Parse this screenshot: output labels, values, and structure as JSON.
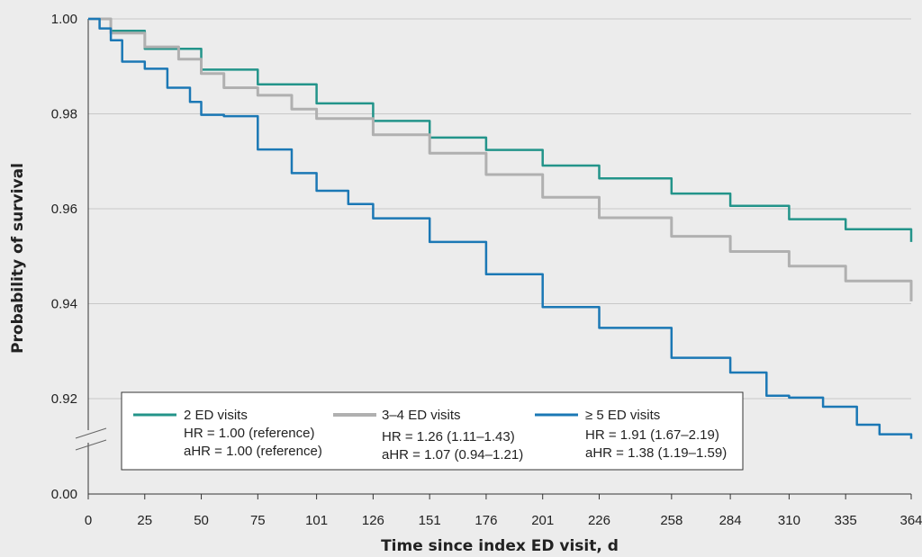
{
  "chart_data": {
    "type": "line",
    "title": "",
    "xlabel": "Time since index ED visit, d",
    "ylabel": "Probability of survival",
    "x_ticks": [
      0,
      25,
      50,
      75,
      101,
      126,
      151,
      176,
      201,
      226,
      258,
      284,
      310,
      335,
      364
    ],
    "xlim": [
      0,
      364
    ],
    "y_ticks": [
      "0.00",
      "0.92",
      "0.94",
      "0.96",
      "0.98",
      "1.00"
    ],
    "ylim": [
      0.91,
      1.0
    ],
    "y_axis_break": "between 0.00 and 0.92",
    "grid": "horizontal",
    "legend_position": "bottom-left inside plot",
    "series": [
      {
        "name": "2 ED visits",
        "color": "#23948a",
        "hr": "HR = 1.00 (reference)",
        "ahr": "aHR = 1.00 (reference)",
        "points": [
          [
            0,
            1.0
          ],
          [
            10,
            0.9975
          ],
          [
            25,
            0.9937
          ],
          [
            50,
            0.9893
          ],
          [
            75,
            0.9862
          ],
          [
            101,
            0.9822
          ],
          [
            126,
            0.9785
          ],
          [
            151,
            0.975
          ],
          [
            176,
            0.9724
          ],
          [
            201,
            0.9691
          ],
          [
            226,
            0.9664
          ],
          [
            258,
            0.9632
          ],
          [
            284,
            0.9606
          ],
          [
            310,
            0.9578
          ],
          [
            335,
            0.9557
          ],
          [
            364,
            0.953
          ]
        ]
      },
      {
        "name": "3–4 ED visits",
        "color": "#b0b0b0",
        "hr": "HR = 1.26 (1.11–1.43)",
        "ahr": "aHR = 1.07 (0.94–1.21)",
        "points": [
          [
            0,
            1.0
          ],
          [
            10,
            0.997
          ],
          [
            25,
            0.9941
          ],
          [
            40,
            0.9915
          ],
          [
            50,
            0.9885
          ],
          [
            60,
            0.9855
          ],
          [
            75,
            0.9839
          ],
          [
            90,
            0.981
          ],
          [
            101,
            0.979
          ],
          [
            126,
            0.9756
          ],
          [
            151,
            0.9717
          ],
          [
            176,
            0.9672
          ],
          [
            201,
            0.9624
          ],
          [
            226,
            0.9581
          ],
          [
            258,
            0.9542
          ],
          [
            284,
            0.951
          ],
          [
            310,
            0.9479
          ],
          [
            335,
            0.9448
          ],
          [
            364,
            0.9405
          ]
        ]
      },
      {
        "name": "≥ 5 ED visits",
        "color": "#1b78b5",
        "hr": "HR = 1.91 (1.67–2.19)",
        "ahr": "aHR = 1.38 (1.19–1.59)",
        "points": [
          [
            0,
            1.0
          ],
          [
            5,
            0.998
          ],
          [
            10,
            0.9955
          ],
          [
            15,
            0.991
          ],
          [
            25,
            0.9895
          ],
          [
            35,
            0.9855
          ],
          [
            45,
            0.9825
          ],
          [
            50,
            0.9798
          ],
          [
            60,
            0.9795
          ],
          [
            75,
            0.9725
          ],
          [
            90,
            0.9675
          ],
          [
            101,
            0.9638
          ],
          [
            115,
            0.961
          ],
          [
            126,
            0.958
          ],
          [
            151,
            0.953
          ],
          [
            176,
            0.9462
          ],
          [
            201,
            0.9393
          ],
          [
            226,
            0.9349
          ],
          [
            258,
            0.9286
          ],
          [
            284,
            0.9255
          ],
          [
            300,
            0.9206
          ],
          [
            310,
            0.9202
          ],
          [
            325,
            0.9183
          ],
          [
            340,
            0.9145
          ],
          [
            350,
            0.9125
          ],
          [
            364,
            0.9115
          ]
        ]
      }
    ]
  }
}
